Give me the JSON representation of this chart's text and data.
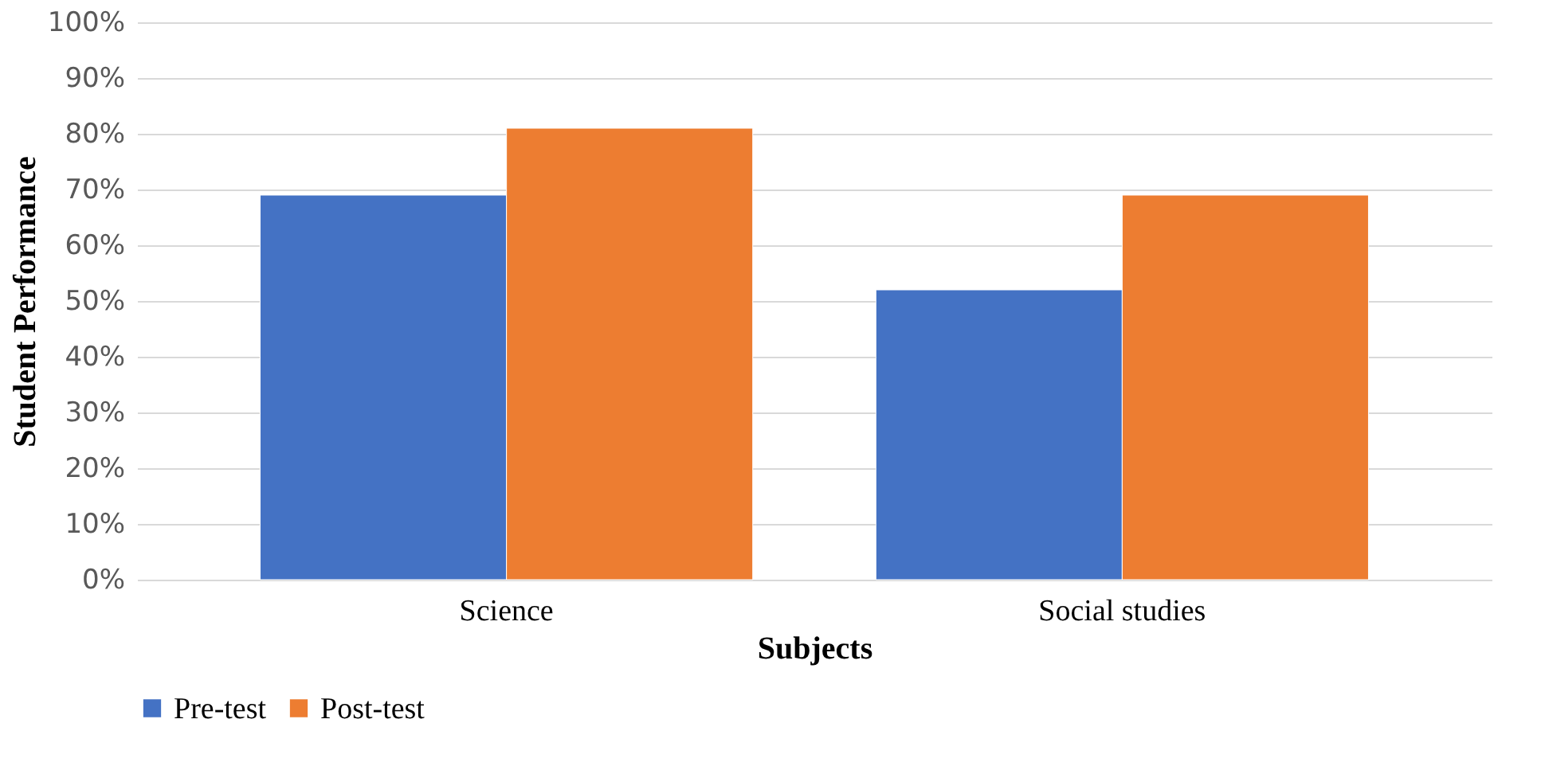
{
  "chart_data": {
    "type": "bar",
    "xlabel": "Subjects",
    "ylabel": "Student Performance",
    "categories": [
      "Science",
      "Social studies"
    ],
    "series": [
      {
        "name": "Pre-test",
        "color": "#4472c4",
        "values": [
          69,
          52
        ]
      },
      {
        "name": "Post-test",
        "color": "#ed7d31",
        "values": [
          81,
          69
        ]
      }
    ],
    "ylim": [
      0,
      100
    ],
    "yticks": [
      {
        "value": 0,
        "label": "0%"
      },
      {
        "value": 10,
        "label": "10%"
      },
      {
        "value": 20,
        "label": "20%"
      },
      {
        "value": 30,
        "label": "30%"
      },
      {
        "value": 40,
        "label": "40%"
      },
      {
        "value": 50,
        "label": "50%"
      },
      {
        "value": 60,
        "label": "60%"
      },
      {
        "value": 70,
        "label": "70%"
      },
      {
        "value": 80,
        "label": "80%"
      },
      {
        "value": 90,
        "label": "90%"
      },
      {
        "value": 100,
        "label": "100%"
      }
    ],
    "grid": "y",
    "legend": "bottom"
  }
}
